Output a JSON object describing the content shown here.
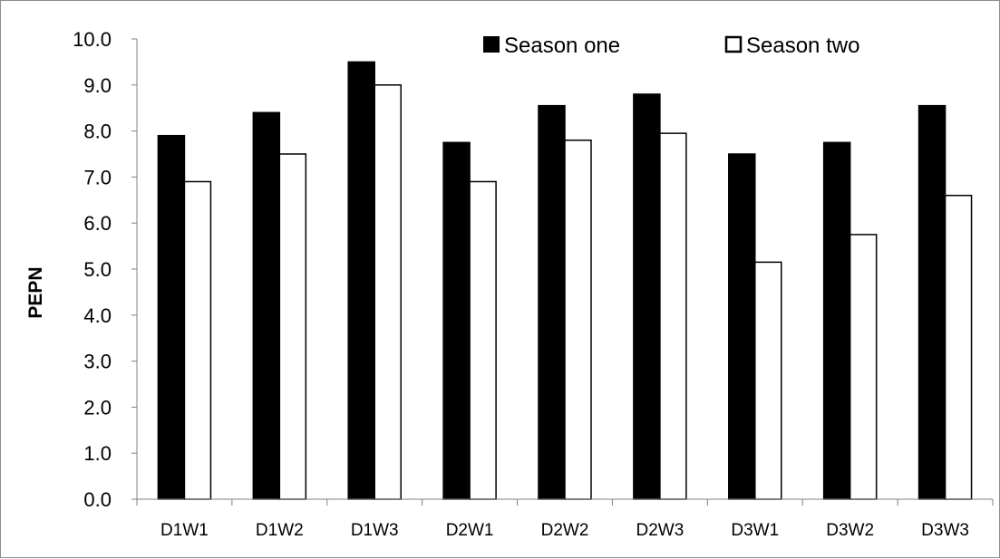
{
  "chart_data": {
    "type": "bar",
    "title": "",
    "xlabel": "",
    "ylabel": "PEPN",
    "ylim": [
      0,
      10
    ],
    "y_ticks": [
      "0.0",
      "1.0",
      "2.0",
      "3.0",
      "4.0",
      "5.0",
      "6.0",
      "7.0",
      "8.0",
      "9.0",
      "10.0"
    ],
    "categories": [
      "D1W1",
      "D1W2",
      "D1W3",
      "D2W1",
      "D2W2",
      "D2W3",
      "D3W1",
      "D3W2",
      "D3W3"
    ],
    "series": [
      {
        "name": "Season one",
        "color": "#000000",
        "values": [
          7.9,
          8.4,
          9.5,
          7.75,
          8.55,
          8.8,
          7.5,
          7.75,
          8.55
        ]
      },
      {
        "name": "Season two",
        "color": "#ffffff",
        "values": [
          6.9,
          7.5,
          9.0,
          6.9,
          7.8,
          7.95,
          5.15,
          5.75,
          6.6
        ]
      }
    ],
    "legend_position": "top-right",
    "grid": false
  }
}
